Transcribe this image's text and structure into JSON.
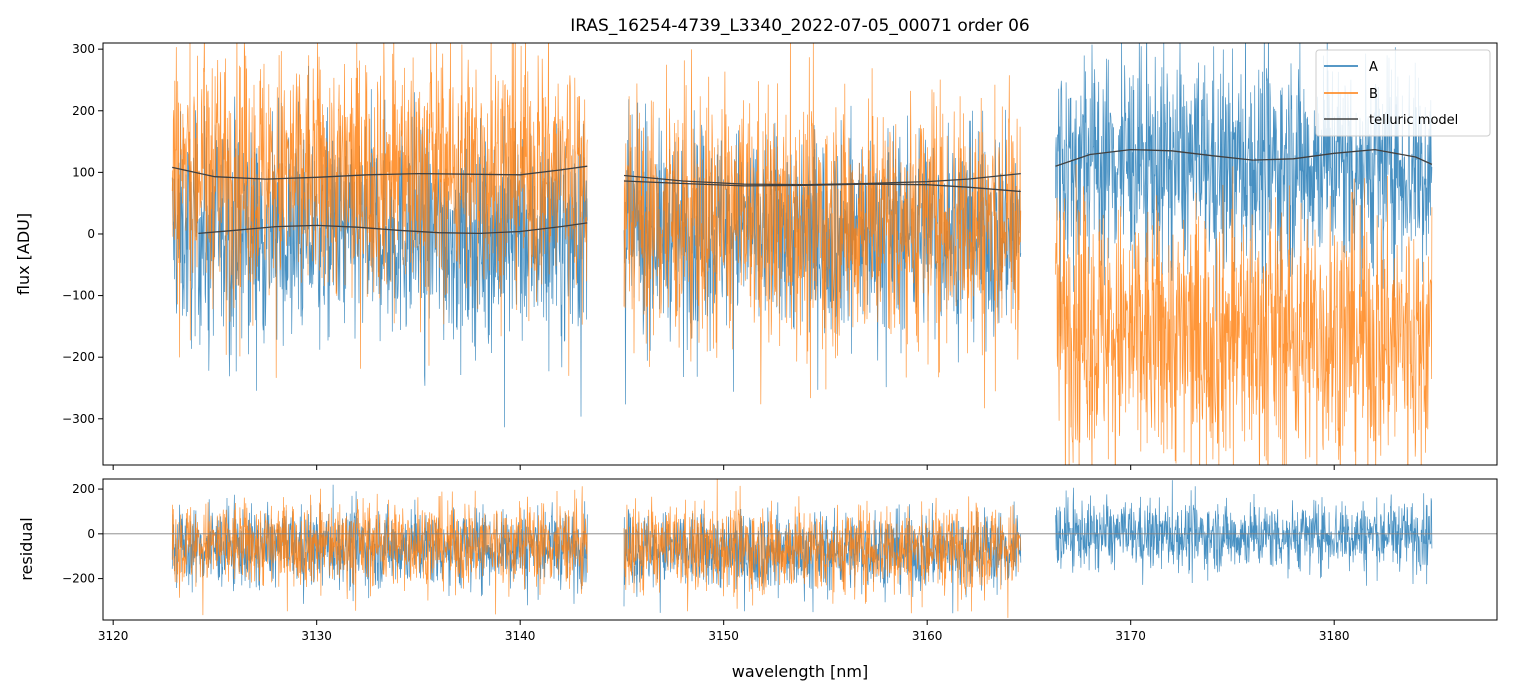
{
  "chart_data": {
    "type": "line",
    "title": "IRAS_16254-4739_L3340_2022-07-05_00071  order 06",
    "xlabel": "wavelength [nm]",
    "xlim": [
      3119.5,
      3188.0
    ],
    "x_ticks": [
      3120,
      3130,
      3140,
      3150,
      3160,
      3170,
      3180
    ],
    "legend": {
      "placement": "top-right",
      "entries": [
        "A",
        "B",
        "telluric model"
      ]
    },
    "colors": {
      "A": "#1f77b4",
      "B": "#ff7f0e",
      "telluric model": "#404040",
      "zero_line": "#808080"
    },
    "grid": false,
    "panels": [
      {
        "name": "flux",
        "ylabel": "flux [ADU]",
        "ylim": [
          -375,
          310
        ],
        "y_ticks": [
          -300,
          -200,
          -100,
          0,
          100,
          200,
          300
        ],
        "segments": [
          {
            "x_range": [
              3122.9,
              3143.3
            ],
            "A": {
              "noise_center": [
                [
                  3122.9,
                  5
                ],
                [
                  3128,
                  -5
                ],
                [
                  3133,
                  5
                ],
                [
                  3138,
                  -5
                ],
                [
                  3143.3,
                  0
                ]
              ],
              "spread": 85
            },
            "B": {
              "noise_center": [
                [
                  3122.9,
                  105
                ],
                [
                  3130,
                  95
                ],
                [
                  3136,
                  105
                ],
                [
                  3143.3,
                  100
                ]
              ],
              "spread": 100
            },
            "telluric_model": [
              {
                "x": [
                  3122.9,
                  3125,
                  3127.5,
                  3130,
                  3132.5,
                  3135,
                  3137.5,
                  3140,
                  3142,
                  3143.3
                ],
                "y": [
                  108,
                  93,
                  89,
                  92,
                  96,
                  98,
                  97,
                  96,
                  104,
                  110
                ]
              },
              {
                "x": [
                  3124.2,
                  3126,
                  3128,
                  3130,
                  3132,
                  3134,
                  3136,
                  3138,
                  3140,
                  3142,
                  3143.3
                ],
                "y": [
                  1,
                  6,
                  12,
                  14,
                  11,
                  6,
                  2,
                  1,
                  4,
                  12,
                  18
                ]
              }
            ]
          },
          {
            "x_range": [
              3145.1,
              3164.6
            ],
            "A": {
              "noise_center": [
                [
                  3145.1,
                  0
                ],
                [
                  3150,
                  10
                ],
                [
                  3155,
                  0
                ],
                [
                  3160,
                  10
                ],
                [
                  3164.6,
                  0
                ]
              ],
              "spread": 80
            },
            "B": {
              "noise_center": [
                [
                  3145.1,
                  20
                ],
                [
                  3150,
                  25
                ],
                [
                  3155,
                  15
                ],
                [
                  3160,
                  25
                ],
                [
                  3164.6,
                  20
                ]
              ],
              "spread": 100
            },
            "telluric_model": [
              {
                "x": [
                  3145.1,
                  3148,
                  3151,
                  3154,
                  3157,
                  3160,
                  3162,
                  3164.6
                ],
                "y": [
                  95,
                  86,
                  81,
                  80,
                  82,
                  85,
                  89,
                  98
                ]
              },
              {
                "x": [
                  3145.1,
                  3148,
                  3151,
                  3154,
                  3157,
                  3160,
                  3162,
                  3164.6
                ],
                "y": [
                  86,
                  82,
                  78,
                  79,
                  81,
                  80,
                  76,
                  69
                ]
              }
            ]
          },
          {
            "x_range": [
              3166.3,
              3184.8
            ],
            "A": {
              "noise_center": [
                [
                  3166.3,
                  115
                ],
                [
                  3170,
                  120
                ],
                [
                  3175,
                  110
                ],
                [
                  3180,
                  120
                ],
                [
                  3184.8,
                  105
                ]
              ],
              "spread": 85
            },
            "B": {
              "noise_center": [
                [
                  3166.3,
                  -130
                ],
                [
                  3170,
                  -170
                ],
                [
                  3175,
                  -160
                ],
                [
                  3180,
                  -165
                ],
                [
                  3184.8,
                  -170
                ]
              ],
              "spread": 105
            },
            "telluric_model": [
              {
                "x": [
                  3166.3,
                  3168,
                  3170,
                  3172,
                  3174,
                  3176,
                  3178,
                  3180,
                  3182,
                  3184,
                  3184.8
                ],
                "y": [
                  110,
                  129,
                  137,
                  135,
                  127,
                  120,
                  122,
                  131,
                  137,
                  125,
                  113
                ]
              }
            ]
          }
        ]
      },
      {
        "name": "residual",
        "ylabel": "residual",
        "ylim": [
          -385,
          245
        ],
        "y_ticks": [
          -200,
          0,
          200
        ],
        "zero_line": 0,
        "segments": [
          {
            "x_range": [
              3122.9,
              3143.3
            ],
            "A": {
              "noise_center": [
                [
                  3122.9,
                  -60
                ],
                [
                  3133,
                  -60
                ],
                [
                  3143.3,
                  -60
                ]
              ],
              "spread": 85
            },
            "B": {
              "noise_center": [
                [
                  3122.9,
                  -50
                ],
                [
                  3133,
                  -40
                ],
                [
                  3143.3,
                  -50
                ]
              ],
              "spread": 95
            }
          },
          {
            "x_range": [
              3145.1,
              3164.6
            ],
            "A": {
              "noise_center": [
                [
                  3145.1,
                  -70
                ],
                [
                  3155,
                  -80
                ],
                [
                  3164.6,
                  -70
                ]
              ],
              "spread": 85
            },
            "B": {
              "noise_center": [
                [
                  3145.1,
                  -60
                ],
                [
                  3155,
                  -70
                ],
                [
                  3164.6,
                  -60
                ]
              ],
              "spread": 95
            }
          },
          {
            "x_range": [
              3166.3,
              3184.8
            ],
            "A": {
              "noise_center": [
                [
                  3166.3,
                  0
                ],
                [
                  3175,
                  -10
                ],
                [
                  3184.8,
                  0
                ]
              ],
              "spread": 75
            }
          }
        ]
      }
    ]
  }
}
